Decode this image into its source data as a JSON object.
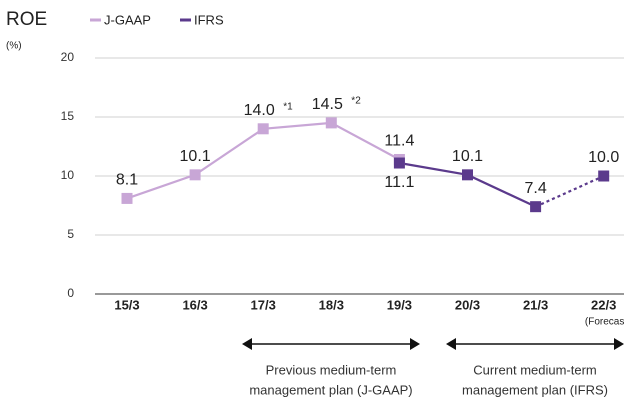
{
  "chart_data": {
    "type": "line",
    "title": "ROE",
    "y_unit": "(%)",
    "categories": [
      "15/3",
      "16/3",
      "17/3",
      "18/3",
      "19/3",
      "20/3",
      "21/3",
      "22/3"
    ],
    "category_note": "(Forecast)",
    "forecast_index": 7,
    "series": [
      {
        "name": "J-GAAP",
        "color": "#c8a6d6",
        "values": [
          8.1,
          10.1,
          14.0,
          14.5,
          11.4,
          null,
          null,
          null
        ],
        "value_labels": [
          "8.1",
          "10.1",
          "14.0",
          "14.5",
          "11.4",
          null,
          null,
          null
        ],
        "value_label_notes": [
          null,
          null,
          "*1",
          "*2",
          null,
          null,
          null,
          null
        ]
      },
      {
        "name": "IFRS",
        "color": "#5b3a8c",
        "values": [
          null,
          null,
          null,
          null,
          11.1,
          10.1,
          7.4,
          10.0
        ],
        "value_labels": [
          null,
          null,
          null,
          null,
          "11.1",
          "10.1",
          "7.4",
          "10.0"
        ],
        "value_label_notes": [
          null,
          null,
          null,
          null,
          null,
          null,
          null,
          null
        ]
      }
    ],
    "ylim": [
      0,
      20
    ],
    "yticks": [
      0,
      5,
      10,
      15,
      20
    ],
    "grid": true,
    "annotations": [
      {
        "lines": [
          "Previous medium-term",
          "management plan (J-GAAP)"
        ]
      },
      {
        "lines": [
          "Current medium-term",
          "management plan (IFRS)"
        ]
      }
    ]
  }
}
